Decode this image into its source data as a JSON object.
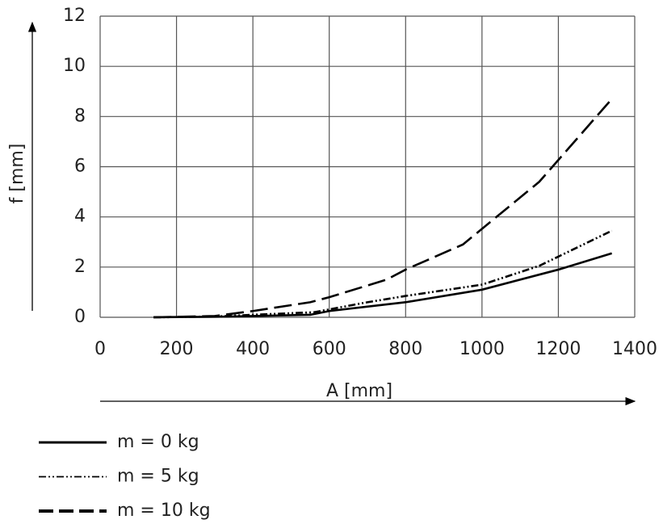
{
  "chart_data": {
    "type": "line",
    "xlabel": "A [mm]",
    "ylabel": "f [mm]",
    "xlim": [
      0,
      1400
    ],
    "xticks": [
      0,
      200,
      400,
      600,
      800,
      1000,
      1200,
      1400
    ],
    "ylim": [
      0,
      12
    ],
    "yticks": [
      0,
      2,
      4,
      6,
      8,
      10,
      12
    ],
    "grid": true,
    "legend": "bottom-left",
    "series": [
      {
        "name": "m = 0 kg",
        "color": "#000000",
        "dash": "solid",
        "x": [
          140,
          300,
          400,
          550,
          600,
          800,
          1000,
          1200,
          1340
        ],
        "values": [
          0,
          0.02,
          0.05,
          0.1,
          0.25,
          0.6,
          1.1,
          1.9,
          2.55
        ]
      },
      {
        "name": "m = 5 kg",
        "color": "#000000",
        "dash": "dashdotdot",
        "x": [
          140,
          300,
          400,
          560,
          700,
          800,
          1000,
          1150,
          1340
        ],
        "values": [
          0,
          0.03,
          0.1,
          0.2,
          0.6,
          0.85,
          1.3,
          2.05,
          3.45
        ]
      },
      {
        "name": "m = 10 kg",
        "color": "#000000",
        "dash": "dashed",
        "x": [
          140,
          300,
          400,
          550,
          600,
          750,
          800,
          950,
          1150,
          1340
        ],
        "values": [
          0,
          0.05,
          0.25,
          0.6,
          0.8,
          1.5,
          1.9,
          2.9,
          5.4,
          8.7
        ]
      }
    ]
  }
}
